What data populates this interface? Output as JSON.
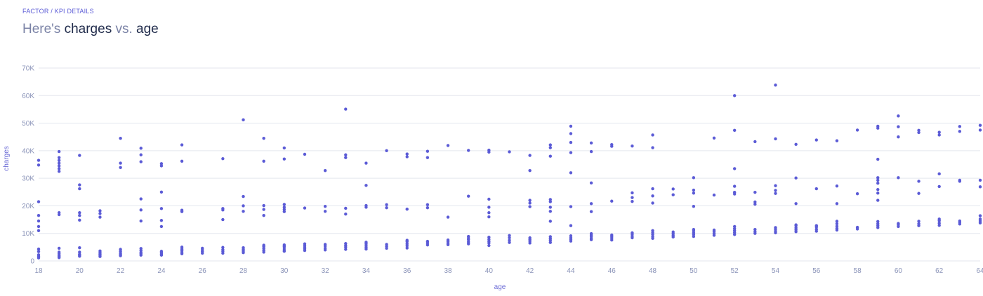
{
  "header": {
    "breadcrumb": "FACTOR / KPI DETAILS",
    "title_prefix": "Here's ",
    "title_y": "charges",
    "title_mid": " vs. ",
    "title_x": "age"
  },
  "colors": {
    "point": "#5b5bd6",
    "grid": "#e3e6ee",
    "axis_text": "#8a93b8",
    "title_text": "#1f2a4a",
    "title_muted": "#7b83a6"
  },
  "chart_data": {
    "type": "scatter",
    "xlabel": "age",
    "ylabel": "charges",
    "xlim": [
      18,
      64
    ],
    "ylim": [
      0,
      70000
    ],
    "x_ticks": [
      18,
      20,
      22,
      24,
      26,
      28,
      30,
      32,
      34,
      36,
      38,
      40,
      42,
      44,
      46,
      48,
      50,
      52,
      54,
      56,
      58,
      60,
      62,
      64
    ],
    "y_ticks": [
      0,
      10000,
      20000,
      30000,
      40000,
      50000,
      60000,
      70000
    ],
    "y_tick_labels": [
      "0",
      "10K",
      "20K",
      "30K",
      "40K",
      "50K",
      "60K",
      "70K"
    ],
    "grid": "horizontal",
    "points": [
      [
        18,
        1100
      ],
      [
        18,
        1700
      ],
      [
        18,
        2200
      ],
      [
        18,
        3400
      ],
      [
        18,
        4300
      ],
      [
        18,
        11000
      ],
      [
        18,
        12500
      ],
      [
        18,
        14500
      ],
      [
        18,
        16500
      ],
      [
        18,
        21500
      ],
      [
        18,
        34800
      ],
      [
        18,
        36500
      ],
      [
        19,
        1200
      ],
      [
        19,
        1600
      ],
      [
        19,
        2000
      ],
      [
        19,
        2600
      ],
      [
        19,
        3200
      ],
      [
        19,
        4600
      ],
      [
        19,
        16800
      ],
      [
        19,
        17500
      ],
      [
        19,
        32500
      ],
      [
        19,
        33500
      ],
      [
        19,
        34500
      ],
      [
        19,
        35500
      ],
      [
        19,
        36500
      ],
      [
        19,
        37500
      ],
      [
        19,
        39700
      ],
      [
        20,
        1700
      ],
      [
        20,
        2100
      ],
      [
        20,
        2400
      ],
      [
        20,
        3200
      ],
      [
        20,
        4800
      ],
      [
        20,
        14800
      ],
      [
        20,
        16500
      ],
      [
        20,
        17500
      ],
      [
        20,
        26200
      ],
      [
        20,
        27600
      ],
      [
        20,
        38300
      ],
      [
        21,
        1600
      ],
      [
        21,
        2100
      ],
      [
        21,
        2500
      ],
      [
        21,
        3000
      ],
      [
        21,
        3600
      ],
      [
        21,
        15900
      ],
      [
        21,
        17200
      ],
      [
        21,
        18200
      ],
      [
        22,
        1900
      ],
      [
        22,
        2300
      ],
      [
        22,
        2800
      ],
      [
        22,
        3500
      ],
      [
        22,
        4200
      ],
      [
        22,
        33900
      ],
      [
        22,
        35500
      ],
      [
        22,
        44500
      ],
      [
        23,
        2100
      ],
      [
        23,
        2600
      ],
      [
        23,
        3100
      ],
      [
        23,
        3800
      ],
      [
        23,
        4500
      ],
      [
        23,
        14500
      ],
      [
        23,
        18500
      ],
      [
        23,
        22500
      ],
      [
        23,
        36000
      ],
      [
        23,
        38500
      ],
      [
        23,
        40900
      ],
      [
        24,
        2100
      ],
      [
        24,
        2500
      ],
      [
        24,
        3000
      ],
      [
        24,
        3500
      ],
      [
        24,
        12500
      ],
      [
        24,
        14700
      ],
      [
        24,
        19000
      ],
      [
        24,
        25000
      ],
      [
        24,
        34500
      ],
      [
        24,
        35300
      ],
      [
        25,
        2600
      ],
      [
        25,
        3200
      ],
      [
        25,
        3800
      ],
      [
        25,
        4300
      ],
      [
        25,
        5000
      ],
      [
        25,
        17900
      ],
      [
        25,
        18400
      ],
      [
        25,
        36200
      ],
      [
        25,
        42100
      ],
      [
        26,
        2800
      ],
      [
        26,
        3400
      ],
      [
        26,
        4000
      ],
      [
        26,
        4600
      ],
      [
        27,
        2800
      ],
      [
        27,
        3500
      ],
      [
        27,
        4100
      ],
      [
        27,
        4900
      ],
      [
        27,
        15000
      ],
      [
        27,
        18500
      ],
      [
        27,
        19000
      ],
      [
        27,
        37100
      ],
      [
        28,
        3000
      ],
      [
        28,
        3600
      ],
      [
        28,
        4200
      ],
      [
        28,
        4800
      ],
      [
        28,
        18000
      ],
      [
        28,
        20000
      ],
      [
        28,
        23400
      ],
      [
        28,
        51200
      ],
      [
        29,
        3200
      ],
      [
        29,
        3800
      ],
      [
        29,
        4500
      ],
      [
        29,
        5200
      ],
      [
        29,
        5700
      ],
      [
        29,
        16500
      ],
      [
        29,
        18700
      ],
      [
        29,
        20100
      ],
      [
        29,
        36200
      ],
      [
        29,
        44500
      ],
      [
        30,
        3500
      ],
      [
        30,
        4000
      ],
      [
        30,
        4700
      ],
      [
        30,
        5300
      ],
      [
        30,
        5800
      ],
      [
        30,
        17900
      ],
      [
        30,
        18700
      ],
      [
        30,
        19500
      ],
      [
        30,
        20500
      ],
      [
        30,
        37000
      ],
      [
        30,
        41000
      ],
      [
        31,
        3800
      ],
      [
        31,
        4400
      ],
      [
        31,
        5000
      ],
      [
        31,
        5600
      ],
      [
        31,
        6200
      ],
      [
        31,
        19200
      ],
      [
        31,
        38700
      ],
      [
        32,
        4000
      ],
      [
        32,
        4600
      ],
      [
        32,
        5400
      ],
      [
        32,
        6000
      ],
      [
        32,
        18000
      ],
      [
        32,
        19800
      ],
      [
        32,
        32800
      ],
      [
        33,
        4200
      ],
      [
        33,
        5000
      ],
      [
        33,
        5600
      ],
      [
        33,
        6300
      ],
      [
        33,
        17000
      ],
      [
        33,
        19100
      ],
      [
        33,
        37500
      ],
      [
        33,
        38500
      ],
      [
        33,
        55100
      ],
      [
        34,
        4300
      ],
      [
        34,
        4900
      ],
      [
        34,
        5500
      ],
      [
        34,
        6200
      ],
      [
        34,
        6800
      ],
      [
        34,
        19500
      ],
      [
        34,
        20100
      ],
      [
        34,
        27400
      ],
      [
        34,
        35500
      ],
      [
        35,
        4600
      ],
      [
        35,
        5300
      ],
      [
        35,
        6000
      ],
      [
        35,
        19300
      ],
      [
        35,
        20400
      ],
      [
        35,
        40000
      ],
      [
        36,
        4700
      ],
      [
        36,
        5500
      ],
      [
        36,
        6200
      ],
      [
        36,
        7000
      ],
      [
        36,
        7500
      ],
      [
        36,
        18800
      ],
      [
        36,
        37800
      ],
      [
        36,
        38800
      ],
      [
        37,
        5800
      ],
      [
        37,
        6500
      ],
      [
        37,
        7100
      ],
      [
        37,
        19300
      ],
      [
        37,
        20400
      ],
      [
        37,
        37500
      ],
      [
        37,
        39800
      ],
      [
        38,
        5900
      ],
      [
        38,
        6400
      ],
      [
        38,
        7000
      ],
      [
        38,
        7600
      ],
      [
        38,
        15900
      ],
      [
        38,
        41900
      ],
      [
        39,
        6200
      ],
      [
        39,
        6900
      ],
      [
        39,
        7700
      ],
      [
        39,
        8300
      ],
      [
        39,
        8900
      ],
      [
        39,
        23500
      ],
      [
        39,
        40100
      ],
      [
        40,
        5600
      ],
      [
        40,
        6500
      ],
      [
        40,
        7100
      ],
      [
        40,
        7800
      ],
      [
        40,
        8600
      ],
      [
        40,
        16000
      ],
      [
        40,
        17500
      ],
      [
        40,
        19500
      ],
      [
        40,
        22400
      ],
      [
        40,
        39500
      ],
      [
        40,
        40200
      ],
      [
        41,
        6700
      ],
      [
        41,
        7500
      ],
      [
        41,
        8400
      ],
      [
        41,
        9200
      ],
      [
        41,
        39600
      ],
      [
        42,
        6500
      ],
      [
        42,
        7200
      ],
      [
        42,
        7800
      ],
      [
        42,
        8400
      ],
      [
        42,
        19700
      ],
      [
        42,
        21000
      ],
      [
        42,
        22000
      ],
      [
        42,
        32800
      ],
      [
        42,
        38300
      ],
      [
        43,
        6700
      ],
      [
        43,
        7500
      ],
      [
        43,
        8100
      ],
      [
        43,
        8800
      ],
      [
        43,
        14400
      ],
      [
        43,
        18000
      ],
      [
        43,
        19500
      ],
      [
        43,
        21500
      ],
      [
        43,
        22300
      ],
      [
        43,
        38000
      ],
      [
        43,
        41100
      ],
      [
        43,
        42100
      ],
      [
        44,
        7200
      ],
      [
        44,
        7800
      ],
      [
        44,
        8400
      ],
      [
        44,
        9100
      ],
      [
        44,
        12800
      ],
      [
        44,
        19700
      ],
      [
        44,
        32000
      ],
      [
        44,
        39300
      ],
      [
        44,
        43000
      ],
      [
        44,
        46200
      ],
      [
        44,
        48900
      ],
      [
        45,
        7700
      ],
      [
        45,
        8200
      ],
      [
        45,
        8800
      ],
      [
        45,
        9400
      ],
      [
        45,
        9900
      ],
      [
        45,
        17900
      ],
      [
        45,
        20800
      ],
      [
        45,
        28300
      ],
      [
        45,
        39700
      ],
      [
        45,
        42800
      ],
      [
        46,
        7600
      ],
      [
        46,
        8300
      ],
      [
        46,
        8800
      ],
      [
        46,
        9400
      ],
      [
        46,
        21700
      ],
      [
        46,
        41600
      ],
      [
        46,
        42200
      ],
      [
        47,
        8400
      ],
      [
        47,
        9000
      ],
      [
        47,
        9700
      ],
      [
        47,
        10200
      ],
      [
        47,
        21600
      ],
      [
        47,
        23000
      ],
      [
        47,
        24700
      ],
      [
        47,
        41700
      ],
      [
        48,
        8200
      ],
      [
        48,
        8800
      ],
      [
        48,
        9600
      ],
      [
        48,
        10300
      ],
      [
        48,
        11000
      ],
      [
        48,
        21000
      ],
      [
        48,
        23600
      ],
      [
        48,
        26200
      ],
      [
        48,
        41100
      ],
      [
        48,
        45700
      ],
      [
        49,
        8700
      ],
      [
        49,
        9300
      ],
      [
        49,
        9900
      ],
      [
        49,
        10500
      ],
      [
        49,
        24000
      ],
      [
        49,
        26100
      ],
      [
        50,
        8900
      ],
      [
        50,
        9600
      ],
      [
        50,
        10200
      ],
      [
        50,
        10900
      ],
      [
        50,
        11400
      ],
      [
        50,
        19800
      ],
      [
        50,
        24600
      ],
      [
        50,
        25700
      ],
      [
        50,
        30200
      ],
      [
        51,
        9300
      ],
      [
        51,
        9900
      ],
      [
        51,
        10600
      ],
      [
        51,
        11200
      ],
      [
        51,
        23900
      ],
      [
        51,
        44600
      ],
      [
        52,
        9600
      ],
      [
        52,
        10300
      ],
      [
        52,
        11000
      ],
      [
        52,
        11700
      ],
      [
        52,
        12500
      ],
      [
        52,
        24300
      ],
      [
        52,
        24900
      ],
      [
        52,
        27100
      ],
      [
        52,
        33500
      ],
      [
        52,
        47400
      ],
      [
        52,
        60000
      ],
      [
        53,
        10000
      ],
      [
        53,
        10600
      ],
      [
        53,
        11400
      ],
      [
        53,
        20600
      ],
      [
        53,
        21400
      ],
      [
        53,
        24900
      ],
      [
        53,
        43300
      ],
      [
        54,
        10200
      ],
      [
        54,
        10800
      ],
      [
        54,
        11500
      ],
      [
        54,
        12100
      ],
      [
        54,
        24500
      ],
      [
        54,
        25600
      ],
      [
        54,
        27300
      ],
      [
        54,
        44300
      ],
      [
        54,
        63800
      ],
      [
        55,
        10600
      ],
      [
        55,
        11300
      ],
      [
        55,
        12000
      ],
      [
        55,
        12800
      ],
      [
        55,
        13100
      ],
      [
        55,
        20800
      ],
      [
        55,
        30100
      ],
      [
        55,
        42300
      ],
      [
        56,
        10800
      ],
      [
        56,
        11500
      ],
      [
        56,
        12300
      ],
      [
        56,
        12800
      ],
      [
        56,
        26200
      ],
      [
        56,
        43900
      ],
      [
        57,
        11200
      ],
      [
        57,
        11800
      ],
      [
        57,
        12600
      ],
      [
        57,
        13500
      ],
      [
        57,
        14400
      ],
      [
        57,
        20800
      ],
      [
        57,
        27200
      ],
      [
        57,
        43600
      ],
      [
        58,
        11600
      ],
      [
        58,
        12200
      ],
      [
        58,
        24400
      ],
      [
        58,
        47500
      ],
      [
        59,
        12100
      ],
      [
        59,
        12800
      ],
      [
        59,
        13500
      ],
      [
        59,
        14300
      ],
      [
        59,
        22000
      ],
      [
        59,
        24600
      ],
      [
        59,
        25900
      ],
      [
        59,
        28200
      ],
      [
        59,
        29300
      ],
      [
        59,
        30200
      ],
      [
        59,
        36900
      ],
      [
        59,
        48200
      ],
      [
        59,
        48900
      ],
      [
        60,
        12500
      ],
      [
        60,
        13100
      ],
      [
        60,
        13600
      ],
      [
        60,
        30200
      ],
      [
        60,
        45000
      ],
      [
        60,
        48700
      ],
      [
        60,
        52600
      ],
      [
        61,
        12800
      ],
      [
        61,
        13500
      ],
      [
        61,
        14400
      ],
      [
        61,
        24500
      ],
      [
        61,
        28900
      ],
      [
        61,
        46600
      ],
      [
        61,
        47400
      ],
      [
        62,
        12900
      ],
      [
        62,
        13700
      ],
      [
        62,
        14600
      ],
      [
        62,
        15200
      ],
      [
        62,
        27000
      ],
      [
        62,
        31600
      ],
      [
        62,
        45700
      ],
      [
        62,
        46700
      ],
      [
        63,
        13400
      ],
      [
        63,
        14000
      ],
      [
        63,
        14500
      ],
      [
        63,
        28900
      ],
      [
        63,
        29300
      ],
      [
        63,
        47000
      ],
      [
        63,
        48800
      ],
      [
        64,
        13800
      ],
      [
        64,
        14500
      ],
      [
        64,
        15200
      ],
      [
        64,
        16400
      ],
      [
        64,
        26900
      ],
      [
        64,
        29300
      ],
      [
        64,
        47500
      ],
      [
        64,
        49200
      ]
    ]
  }
}
